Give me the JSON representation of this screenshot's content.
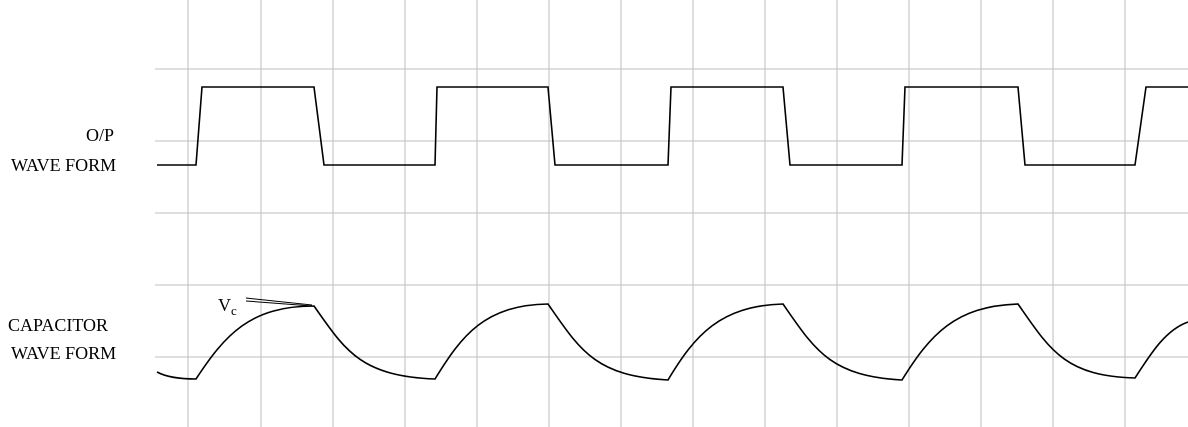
{
  "labels": {
    "op_line1": "O/P",
    "op_line2": "WAVE FORM",
    "cap_line1": "CAPACITOR",
    "cap_line2": "WAVE FORM",
    "vc_main": "V",
    "vc_sub": "c"
  },
  "colors": {
    "grid": "#bdbdbd",
    "trace": "#000000",
    "background": "#ffffff"
  }
}
